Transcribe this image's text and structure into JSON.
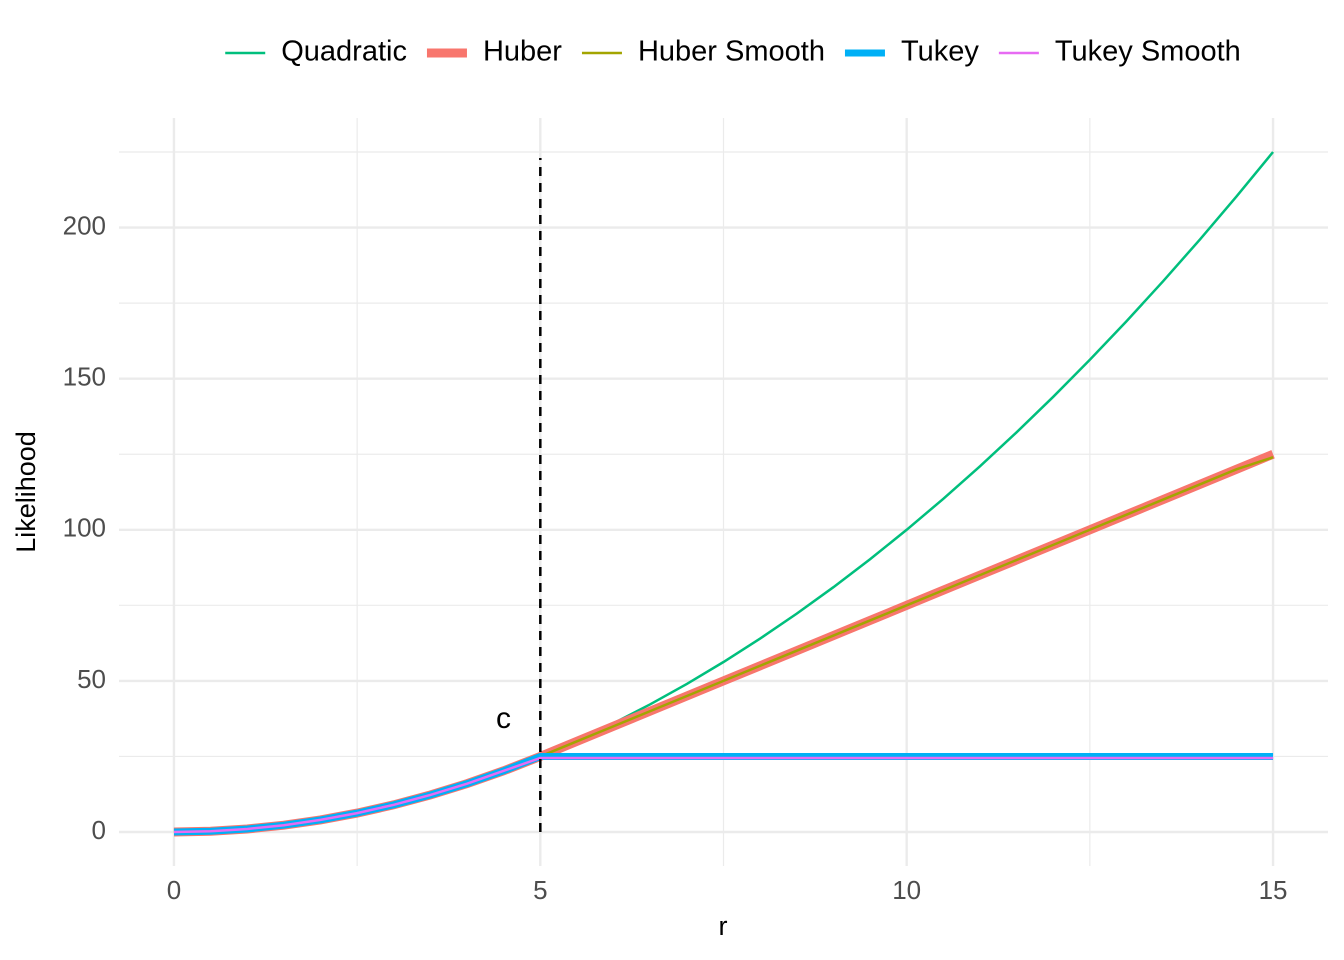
{
  "chart_data": {
    "type": "line",
    "x_label": "r",
    "y_label": "Likelihood",
    "x": [
      0,
      0.5,
      1,
      1.5,
      2,
      2.5,
      3,
      3.5,
      4,
      4.5,
      5,
      5.5,
      6,
      6.5,
      7,
      7.5,
      8,
      8.5,
      9,
      9.5,
      10,
      10.5,
      11,
      11.5,
      12,
      12.5,
      13,
      13.5,
      14,
      14.5,
      15
    ],
    "series": [
      {
        "name": "Quadratic",
        "color": "#00BF7D",
        "width": 2.5,
        "values": [
          0,
          0.25,
          1,
          2.25,
          4,
          6.25,
          9,
          12.25,
          16,
          20.25,
          25,
          30.25,
          36,
          42.25,
          49,
          56.25,
          64,
          72.25,
          81,
          90.25,
          100,
          110.25,
          121,
          132.25,
          144,
          156.25,
          169,
          182.25,
          196,
          210.25,
          225
        ]
      },
      {
        "name": "Huber",
        "color": "#F8766D",
        "width": 9,
        "values": [
          0,
          0.25,
          1,
          2.25,
          4,
          6.25,
          9,
          12.25,
          16,
          20.25,
          25,
          30,
          35,
          40,
          45,
          50,
          55,
          60,
          65,
          70,
          75,
          80,
          85,
          90,
          95,
          100,
          105,
          110,
          115,
          120,
          125
        ]
      },
      {
        "name": "Huber Smooth",
        "color": "#A3A500",
        "width": 2.5,
        "values": [
          0,
          0.25,
          1,
          2.25,
          4,
          6.25,
          9,
          12.25,
          16,
          20.25,
          25,
          30,
          35,
          40,
          45,
          50,
          55,
          60,
          65,
          70,
          75,
          80,
          85,
          90,
          95,
          100,
          105,
          110,
          115,
          120,
          124
        ]
      },
      {
        "name": "Tukey",
        "color": "#00B0F6",
        "width": 7,
        "values": [
          0,
          0.25,
          1,
          2.25,
          4,
          6.25,
          9,
          12.25,
          16,
          20.25,
          25,
          25,
          25,
          25,
          25,
          25,
          25,
          25,
          25,
          25,
          25,
          25,
          25,
          25,
          25,
          25,
          25,
          25,
          25,
          25,
          25
        ]
      },
      {
        "name": "Tukey Smooth",
        "color": "#E76BF3",
        "width": 2.5,
        "values": [
          0,
          0.25,
          1,
          2.25,
          4,
          6.25,
          9,
          12.25,
          16,
          20.25,
          24.5,
          24.5,
          24.5,
          24.5,
          24.5,
          24.5,
          24.5,
          24.5,
          24.5,
          24.5,
          24.5,
          24.5,
          24.5,
          24.5,
          24.5,
          24.5,
          24.5,
          24.5,
          24.5,
          24.5,
          24.5
        ]
      }
    ],
    "xlim": [
      -0.75,
      15.75
    ],
    "ylim": [
      -11.25,
      236.25
    ],
    "xticks": [
      0,
      5,
      10,
      15
    ],
    "yticks": [
      0,
      50,
      100,
      150,
      200
    ],
    "grid": true,
    "legend": "top",
    "vline": {
      "x": 5,
      "y": [
        0,
        223
      ]
    },
    "annotation": {
      "text": "c",
      "x": 4.6,
      "y": 37
    }
  }
}
